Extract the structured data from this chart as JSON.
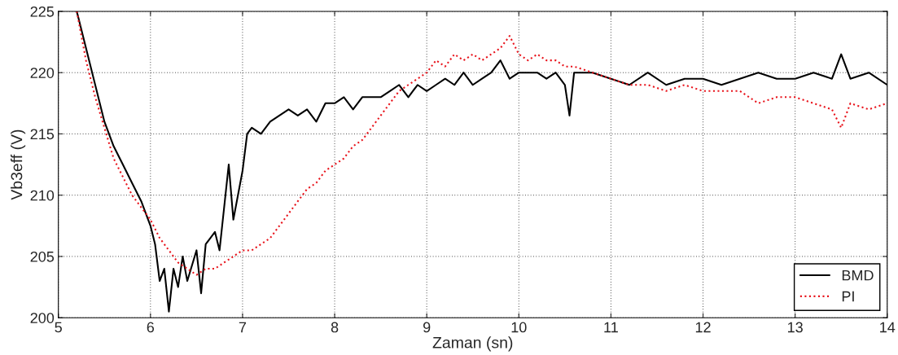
{
  "chart_data": {
    "type": "line",
    "xlabel": "Zaman (sn)",
    "ylabel": "Vb3eff (V)",
    "xlim": [
      5,
      14
    ],
    "xticks": [
      5,
      6,
      7,
      8,
      9,
      10,
      11,
      12,
      13,
      14
    ],
    "ylim": [
      200,
      225
    ],
    "yticks": [
      200,
      205,
      210,
      215,
      220,
      225
    ],
    "grid": true,
    "legend": "bottom right",
    "series": [
      {
        "name": "BMD",
        "color": "#000000",
        "line_style": "solid",
        "x": [
          5.2,
          5.3,
          5.4,
          5.5,
          5.6,
          5.7,
          5.8,
          5.9,
          6.0,
          6.05,
          6.1,
          6.15,
          6.2,
          6.25,
          6.3,
          6.35,
          6.4,
          6.5,
          6.55,
          6.6,
          6.7,
          6.75,
          6.8,
          6.85,
          6.9,
          6.95,
          7.0,
          7.05,
          7.1,
          7.2,
          7.3,
          7.4,
          7.5,
          7.6,
          7.7,
          7.8,
          7.9,
          8.0,
          8.1,
          8.2,
          8.3,
          8.4,
          8.5,
          8.6,
          8.7,
          8.8,
          8.9,
          9.0,
          9.1,
          9.2,
          9.3,
          9.4,
          9.5,
          9.6,
          9.7,
          9.8,
          9.9,
          10.0,
          10.1,
          10.2,
          10.3,
          10.4,
          10.5,
          10.55,
          10.6,
          10.8,
          11.0,
          11.2,
          11.4,
          11.6,
          11.8,
          12.0,
          12.2,
          12.4,
          12.6,
          12.8,
          13.0,
          13.2,
          13.4,
          13.5,
          13.6,
          13.8,
          14.0
        ],
        "values": [
          225,
          222,
          219,
          216,
          214,
          212.5,
          211,
          209.5,
          207.5,
          206,
          203,
          204,
          200.5,
          204,
          202.5,
          205,
          203,
          205.5,
          202,
          206,
          207,
          205.5,
          209,
          212.5,
          208,
          210,
          212,
          215,
          215.5,
          215,
          216,
          216.5,
          217,
          216.5,
          217,
          216,
          217.5,
          217.5,
          218,
          217,
          218,
          218,
          218,
          218.5,
          219,
          218,
          219,
          218.5,
          219,
          219.5,
          219,
          220,
          219,
          219.5,
          220,
          221,
          219.5,
          220,
          220,
          220,
          219.5,
          220,
          219,
          216.5,
          220,
          220,
          219.5,
          219,
          220,
          219,
          219.5,
          219.5,
          219,
          219.5,
          220,
          219.5,
          219.5,
          220,
          219.5,
          221.5,
          219.5,
          220,
          219
        ]
      },
      {
        "name": "PI",
        "color": "#e8141c",
        "line_style": "dotted",
        "x": [
          5.2,
          5.3,
          5.4,
          5.5,
          5.6,
          5.7,
          5.8,
          5.9,
          6.0,
          6.1,
          6.2,
          6.3,
          6.4,
          6.5,
          6.6,
          6.7,
          6.8,
          6.9,
          7.0,
          7.1,
          7.2,
          7.3,
          7.4,
          7.5,
          7.6,
          7.7,
          7.8,
          7.9,
          8.0,
          8.1,
          8.2,
          8.3,
          8.4,
          8.5,
          8.6,
          8.7,
          8.8,
          8.9,
          9.0,
          9.1,
          9.2,
          9.3,
          9.4,
          9.5,
          9.6,
          9.7,
          9.8,
          9.9,
          10.0,
          10.1,
          10.2,
          10.3,
          10.4,
          10.5,
          10.6,
          10.8,
          11.0,
          11.2,
          11.4,
          11.6,
          11.8,
          12.0,
          12.2,
          12.4,
          12.6,
          12.8,
          13.0,
          13.2,
          13.4,
          13.5,
          13.6,
          13.8,
          14.0
        ],
        "values": [
          225,
          221,
          218,
          215.5,
          213,
          211.5,
          210,
          209,
          208,
          206.5,
          205.5,
          204.5,
          204,
          203.5,
          204,
          204,
          204.5,
          205,
          205.5,
          205.5,
          206,
          206.5,
          207.5,
          208.5,
          209.5,
          210.5,
          211,
          212,
          212.5,
          213,
          214,
          214.5,
          215.5,
          216.5,
          217.5,
          218.5,
          219,
          219.5,
          220,
          221,
          220.5,
          221.5,
          221,
          221.5,
          221,
          221.5,
          222,
          223,
          221.5,
          221,
          221.5,
          221,
          221,
          220.5,
          220.5,
          220,
          219.5,
          219,
          219,
          218.5,
          219,
          218.5,
          218.5,
          218.5,
          217.5,
          218,
          218,
          217.5,
          217,
          215.5,
          217.5,
          217,
          217.5
        ]
      }
    ]
  }
}
